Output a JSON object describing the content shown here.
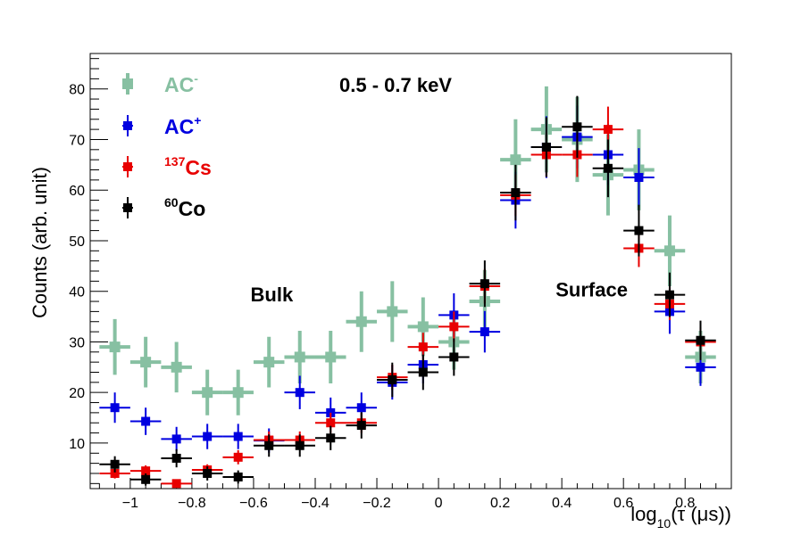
{
  "chart_data": {
    "type": "scatter",
    "title": "0.5 - 0.7 keV",
    "xlabel": "log10(τ (μs))",
    "ylabel": "Counts (arb. unit)",
    "xlim": [
      -1.13,
      0.95
    ],
    "ylim": [
      1,
      87
    ],
    "x_ticks": [
      -1,
      -0.8,
      -0.6,
      -0.4,
      -0.2,
      0,
      0.2,
      0.4,
      0.6,
      0.8
    ],
    "x_tick_labels": [
      "−1",
      "−0.8",
      "−0.6",
      "−0.4",
      "−0.2",
      "0",
      "0.2",
      "0.4",
      "0.6",
      "0.8"
    ],
    "y_ticks": [
      10,
      20,
      30,
      40,
      50,
      60,
      70,
      80
    ],
    "y_tick_labels": [
      "10",
      "20",
      "30",
      "40",
      "50",
      "60",
      "70",
      "80"
    ],
    "annotations": [
      {
        "text": "Bulk",
        "x": -0.61,
        "y": 38
      },
      {
        "text": "Surface",
        "x": 0.38,
        "y": 39
      }
    ],
    "legend": [
      {
        "series": "AC-",
        "base": "AC",
        "sup": "-",
        "sup_first": false
      },
      {
        "series": "AC+",
        "base": "AC",
        "sup": "+",
        "sup_first": false
      },
      {
        "series": "137Cs",
        "base": "Cs",
        "sup": "137",
        "sup_first": true
      },
      {
        "series": "60Co",
        "base": "Co",
        "sup": "60",
        "sup_first": true
      }
    ],
    "series": [
      {
        "name": "AC-",
        "color": "#87c0a2",
        "x": [
          -1.05,
          -0.95,
          -0.85,
          -0.75,
          -0.65,
          -0.55,
          -0.45,
          -0.35,
          -0.25,
          -0.15,
          -0.05,
          0.05,
          0.15,
          0.25,
          0.35,
          0.45,
          0.55,
          0.65,
          0.75,
          0.85
        ],
        "y": [
          29,
          26,
          25,
          20,
          20,
          26,
          27,
          27,
          34,
          36,
          33,
          30,
          38,
          66,
          72,
          70,
          63,
          64,
          48,
          27
        ],
        "yerr": [
          5.5,
          5.0,
          5.0,
          4.5,
          4.5,
          5.0,
          5.2,
          5.2,
          6.0,
          6.0,
          5.8,
          5.5,
          6.2,
          8.0,
          8.5,
          8.4,
          8.0,
          8.0,
          7.0,
          5.2
        ]
      },
      {
        "name": "AC+",
        "color": "#0000e0",
        "x": [
          -1.05,
          -0.95,
          -0.85,
          -0.75,
          -0.65,
          -0.55,
          -0.45,
          -0.35,
          -0.25,
          -0.15,
          -0.05,
          0.05,
          0.15,
          0.25,
          0.35,
          0.45,
          0.55,
          0.65,
          0.75,
          0.85
        ],
        "y": [
          17,
          14.3,
          10.8,
          11.3,
          11.3,
          10.5,
          20,
          16,
          17,
          22,
          25.5,
          35.3,
          32,
          58,
          68.5,
          70.5,
          67,
          62.5,
          36,
          25
        ],
        "yerr": [
          3.0,
          2.7,
          2.4,
          2.5,
          2.5,
          2.4,
          3.3,
          3.0,
          3.0,
          3.4,
          3.7,
          4.3,
          4.1,
          5.6,
          6.1,
          6.2,
          6.0,
          5.8,
          4.4,
          3.7
        ]
      },
      {
        "name": "137Cs",
        "color": "#e80000",
        "x": [
          -1.05,
          -0.95,
          -0.85,
          -0.75,
          -0.65,
          -0.55,
          -0.45,
          -0.35,
          -0.25,
          -0.15,
          -0.05,
          0.05,
          0.15,
          0.25,
          0.35,
          0.45,
          0.55,
          0.65,
          0.75,
          0.85
        ],
        "y": [
          4,
          4.5,
          2,
          4.7,
          7.2,
          10.6,
          10.6,
          14,
          14,
          23,
          29,
          33,
          41,
          59,
          67,
          67,
          72,
          48.5,
          37.5,
          30
        ],
        "yerr": [
          1.0,
          1.1,
          0.7,
          1.1,
          1.4,
          1.7,
          1.7,
          2.0,
          2.0,
          2.5,
          2.8,
          3.0,
          3.4,
          4.1,
          4.4,
          4.4,
          4.5,
          3.7,
          3.2,
          2.9
        ]
      },
      {
        "name": "60Co",
        "color": "#000000",
        "x": [
          -1.05,
          -0.95,
          -0.85,
          -0.75,
          -0.65,
          -0.55,
          -0.45,
          -0.35,
          -0.25,
          -0.15,
          -0.05,
          0.05,
          0.15,
          0.25,
          0.35,
          0.45,
          0.55,
          0.65,
          0.75,
          0.85
        ],
        "y": [
          5.8,
          2.8,
          7,
          4,
          3.3,
          9.5,
          9.5,
          11,
          13.5,
          22.5,
          24,
          27,
          41.5,
          59.5,
          68.5,
          72.5,
          64.3,
          52,
          39.3,
          30.3
        ],
        "yerr": [
          1.6,
          1.2,
          1.8,
          1.4,
          1.3,
          2.2,
          2.2,
          2.4,
          2.6,
          3.4,
          3.5,
          3.7,
          4.6,
          5.5,
          5.9,
          6.1,
          5.7,
          5.1,
          4.4,
          3.9
        ]
      }
    ]
  }
}
